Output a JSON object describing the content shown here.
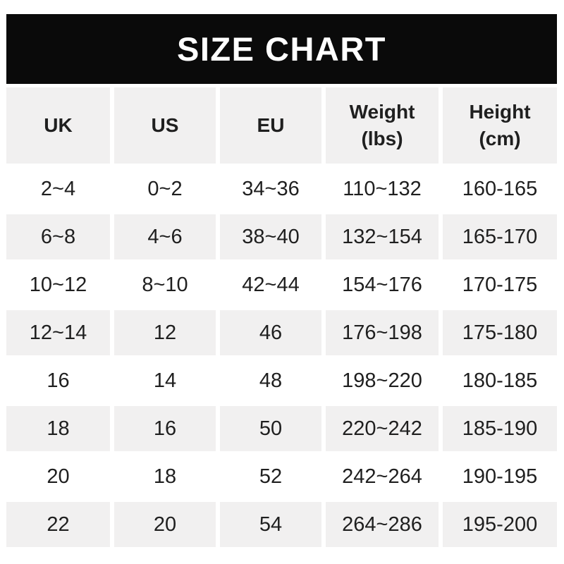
{
  "page": {
    "title_banner": "SIZE CHART"
  },
  "colors": {
    "banner_bg": "#0a0a0a",
    "banner_text": "#ffffff",
    "cell_shade": "#f1f0f0",
    "text": "#1f1f1f",
    "page_bg": "#ffffff"
  },
  "chart_data": {
    "type": "table",
    "title": "SIZE CHART",
    "columns": [
      {
        "label": "UK",
        "unit": ""
      },
      {
        "label": "US",
        "unit": ""
      },
      {
        "label": "EU",
        "unit": ""
      },
      {
        "label": "Weight",
        "unit": "(lbs)"
      },
      {
        "label": "Height",
        "unit": "(cm)"
      }
    ],
    "rows": [
      [
        "2~4",
        "0~2",
        "34~36",
        "110~132",
        "160-165"
      ],
      [
        "6~8",
        "4~6",
        "38~40",
        "132~154",
        "165-170"
      ],
      [
        "10~12",
        "8~10",
        "42~44",
        "154~176",
        "170-175"
      ],
      [
        "12~14",
        "12",
        "46",
        "176~198",
        "175-180"
      ],
      [
        "16",
        "14",
        "48",
        "198~220",
        "180-185"
      ],
      [
        "18",
        "16",
        "50",
        "220~242",
        "185-190"
      ],
      [
        "20",
        "18",
        "52",
        "242~264",
        "190-195"
      ],
      [
        "22",
        "20",
        "54",
        "264~286",
        "195-200"
      ]
    ],
    "layout": {
      "header_row_shaded": true,
      "shaded_data_rows": [
        2,
        4,
        6,
        8
      ],
      "row_separator": "white gaps between cells",
      "grid_lines": false
    }
  }
}
